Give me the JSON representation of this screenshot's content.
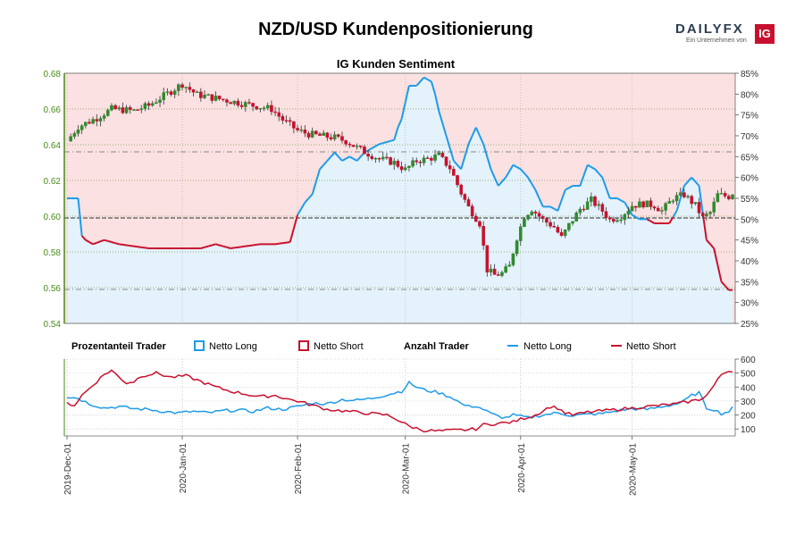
{
  "header": {
    "title": "NZD/USD Kundenpositionierung",
    "subtitle": "IG Kunden Sentiment"
  },
  "logo": {
    "brand_left": "DAILY",
    "brand_right": "FX",
    "tagline": "Ein Unternehmen von",
    "badge": "IG"
  },
  "colors": {
    "long": "#1e9be8",
    "short": "#c8102e",
    "long_fill": "#e4f2fb",
    "short_fill": "#fbe1e1",
    "bull_candle": "#2e8b2e",
    "bear_candle": "#c8102e",
    "left_axis": "#4a8a1a"
  },
  "legend": {
    "pct_header": "Prozentanteil Trader",
    "count_header": "Anzahl Trader",
    "long_label": "Netto Long",
    "short_label": "Netto Short"
  },
  "chart_data": [
    {
      "type": "line",
      "subtype": "candlestick with sentiment area",
      "title": "IG Kunden Sentiment",
      "y_left_range": [
        0.54,
        0.68
      ],
      "y_left_ticks": [
        "0.54",
        "0.56",
        "0.58",
        "0.60",
        "0.62",
        "0.64",
        "0.66",
        "0.68"
      ],
      "y_right_range": [
        25,
        85
      ],
      "y_right_ticks": [
        "25%",
        "30%",
        "35%",
        "40%",
        "45%",
        "50%",
        "55%",
        "60%",
        "65%",
        "70%",
        "75%",
        "80%",
        "85%"
      ],
      "x_ticks": [
        "2019-Dec-01",
        "2020-Jan-01",
        "2020-Feb-01",
        "2020-Mar-01",
        "2020-Apr-01",
        "2020-May-01"
      ],
      "x_tick_index": [
        0,
        31,
        62,
        91,
        122,
        152
      ],
      "n_days": 180,
      "price_close_keypoints": [
        [
          0,
          0.642
        ],
        [
          3,
          0.65
        ],
        [
          8,
          0.655
        ],
        [
          12,
          0.66
        ],
        [
          18,
          0.659
        ],
        [
          22,
          0.662
        ],
        [
          28,
          0.67
        ],
        [
          31,
          0.674
        ],
        [
          35,
          0.668
        ],
        [
          40,
          0.666
        ],
        [
          45,
          0.664
        ],
        [
          50,
          0.662
        ],
        [
          55,
          0.66
        ],
        [
          58,
          0.654
        ],
        [
          62,
          0.648
        ],
        [
          65,
          0.646
        ],
        [
          68,
          0.645
        ],
        [
          72,
          0.644
        ],
        [
          75,
          0.642
        ],
        [
          80,
          0.636
        ],
        [
          84,
          0.632
        ],
        [
          88,
          0.63
        ],
        [
          91,
          0.626
        ],
        [
          94,
          0.631
        ],
        [
          97,
          0.632
        ],
        [
          100,
          0.634
        ],
        [
          103,
          0.627
        ],
        [
          106,
          0.613
        ],
        [
          108,
          0.605
        ],
        [
          111,
          0.596
        ],
        [
          113,
          0.57
        ],
        [
          115,
          0.567
        ],
        [
          117,
          0.568
        ],
        [
          119,
          0.572
        ],
        [
          121,
          0.588
        ],
        [
          123,
          0.6
        ],
        [
          125,
          0.604
        ],
        [
          128,
          0.598
        ],
        [
          131,
          0.594
        ],
        [
          133,
          0.588
        ],
        [
          135,
          0.595
        ],
        [
          138,
          0.604
        ],
        [
          141,
          0.609
        ],
        [
          144,
          0.603
        ],
        [
          146,
          0.598
        ],
        [
          149,
          0.6
        ],
        [
          152,
          0.606
        ],
        [
          155,
          0.607
        ],
        [
          158,
          0.606
        ],
        [
          160,
          0.603
        ],
        [
          163,
          0.61
        ],
        [
          166,
          0.612
        ],
        [
          169,
          0.606
        ],
        [
          171,
          0.599
        ],
        [
          173,
          0.602
        ],
        [
          175,
          0.612
        ],
        [
          178,
          0.611
        ],
        [
          179,
          0.613
        ]
      ],
      "long_pct_keypoints": [
        [
          0,
          55
        ],
        [
          3,
          55
        ],
        [
          4,
          46
        ],
        [
          5,
          45
        ],
        [
          7,
          44
        ],
        [
          10,
          45
        ],
        [
          14,
          44
        ],
        [
          18,
          43.5
        ],
        [
          22,
          43
        ],
        [
          28,
          43
        ],
        [
          32,
          43
        ],
        [
          36,
          43
        ],
        [
          40,
          44
        ],
        [
          44,
          43
        ],
        [
          48,
          43.5
        ],
        [
          52,
          44
        ],
        [
          56,
          44
        ],
        [
          60,
          44.5
        ],
        [
          62,
          51
        ],
        [
          64,
          54
        ],
        [
          66,
          56
        ],
        [
          68,
          62
        ],
        [
          70,
          64
        ],
        [
          72,
          66
        ],
        [
          74,
          64
        ],
        [
          76,
          65
        ],
        [
          78,
          64
        ],
        [
          80,
          66
        ],
        [
          82,
          67
        ],
        [
          84,
          68
        ],
        [
          86,
          68.5
        ],
        [
          88,
          69
        ],
        [
          89,
          72
        ],
        [
          90,
          74
        ],
        [
          91,
          78
        ],
        [
          92,
          82
        ],
        [
          94,
          82
        ],
        [
          96,
          84
        ],
        [
          98,
          83
        ],
        [
          99,
          80
        ],
        [
          100,
          76
        ],
        [
          102,
          70
        ],
        [
          104,
          64
        ],
        [
          106,
          62
        ],
        [
          108,
          68
        ],
        [
          110,
          72
        ],
        [
          112,
          68
        ],
        [
          114,
          62
        ],
        [
          116,
          58
        ],
        [
          118,
          60
        ],
        [
          120,
          63
        ],
        [
          122,
          62
        ],
        [
          124,
          60
        ],
        [
          126,
          57
        ],
        [
          128,
          53
        ],
        [
          130,
          53
        ],
        [
          132,
          52
        ],
        [
          134,
          57
        ],
        [
          136,
          58
        ],
        [
          138,
          58
        ],
        [
          140,
          63
        ],
        [
          142,
          62
        ],
        [
          144,
          60
        ],
        [
          146,
          55
        ],
        [
          148,
          55
        ],
        [
          150,
          54
        ],
        [
          152,
          51
        ],
        [
          154,
          50
        ],
        [
          156,
          50
        ],
        [
          158,
          49
        ],
        [
          160,
          49
        ],
        [
          162,
          49
        ],
        [
          164,
          52
        ],
        [
          166,
          58
        ],
        [
          168,
          60
        ],
        [
          170,
          58
        ],
        [
          172,
          45
        ],
        [
          174,
          43
        ],
        [
          176,
          35
        ],
        [
          178,
          33
        ],
        [
          179,
          33
        ]
      ],
      "price_line_levels": [
        0.636,
        0.599,
        0.559
      ]
    },
    {
      "type": "line",
      "title": "Anzahl Trader",
      "y_range": [
        50,
        600
      ],
      "y_ticks": [
        "100",
        "200",
        "300",
        "400",
        "500",
        "600"
      ],
      "series": [
        {
          "name": "Netto Long",
          "keypoints": [
            [
              0,
              330
            ],
            [
              3,
              320
            ],
            [
              6,
              280
            ],
            [
              10,
              250
            ],
            [
              14,
              260
            ],
            [
              18,
              245
            ],
            [
              22,
              240
            ],
            [
              26,
              225
            ],
            [
              30,
              215
            ],
            [
              34,
              225
            ],
            [
              38,
              215
            ],
            [
              42,
              230
            ],
            [
              46,
              235
            ],
            [
              50,
              225
            ],
            [
              54,
              250
            ],
            [
              58,
              240
            ],
            [
              62,
              260
            ],
            [
              66,
              285
            ],
            [
              70,
              280
            ],
            [
              74,
              310
            ],
            [
              78,
              305
            ],
            [
              82,
              320
            ],
            [
              86,
              345
            ],
            [
              90,
              370
            ],
            [
              92,
              430
            ],
            [
              94,
              400
            ],
            [
              96,
              380
            ],
            [
              100,
              360
            ],
            [
              104,
              320
            ],
            [
              106,
              280
            ],
            [
              108,
              260
            ],
            [
              110,
              265
            ],
            [
              112,
              240
            ],
            [
              114,
              210
            ],
            [
              116,
              190
            ],
            [
              118,
              180
            ],
            [
              120,
              200
            ],
            [
              122,
              190
            ],
            [
              124,
              180
            ],
            [
              128,
              200
            ],
            [
              132,
              215
            ],
            [
              136,
              195
            ],
            [
              140,
              205
            ],
            [
              144,
              210
            ],
            [
              148,
              230
            ],
            [
              152,
              245
            ],
            [
              156,
              240
            ],
            [
              160,
              260
            ],
            [
              164,
              280
            ],
            [
              166,
              300
            ],
            [
              168,
              340
            ],
            [
              170,
              360
            ],
            [
              172,
              250
            ],
            [
              174,
              240
            ],
            [
              176,
              210
            ],
            [
              178,
              225
            ],
            [
              179,
              250
            ]
          ]
        },
        {
          "name": "Netto Short",
          "keypoints": [
            [
              0,
              285
            ],
            [
              2,
              270
            ],
            [
              4,
              340
            ],
            [
              6,
              390
            ],
            [
              8,
              440
            ],
            [
              10,
              490
            ],
            [
              12,
              520
            ],
            [
              14,
              470
            ],
            [
              16,
              430
            ],
            [
              18,
              440
            ],
            [
              20,
              480
            ],
            [
              24,
              500
            ],
            [
              28,
              470
            ],
            [
              32,
              480
            ],
            [
              36,
              440
            ],
            [
              40,
              400
            ],
            [
              44,
              370
            ],
            [
              48,
              350
            ],
            [
              52,
              330
            ],
            [
              56,
              340
            ],
            [
              60,
              310
            ],
            [
              62,
              300
            ],
            [
              66,
              270
            ],
            [
              70,
              240
            ],
            [
              74,
              230
            ],
            [
              78,
              220
            ],
            [
              82,
              210
            ],
            [
              86,
              200
            ],
            [
              88,
              180
            ],
            [
              90,
              150
            ],
            [
              92,
              120
            ],
            [
              96,
              90
            ],
            [
              100,
              85
            ],
            [
              104,
              90
            ],
            [
              108,
              95
            ],
            [
              110,
              100
            ],
            [
              112,
              130
            ],
            [
              116,
              140
            ],
            [
              120,
              150
            ],
            [
              122,
              170
            ],
            [
              124,
              185
            ],
            [
              126,
              200
            ],
            [
              128,
              230
            ],
            [
              130,
              260
            ],
            [
              132,
              250
            ],
            [
              134,
              215
            ],
            [
              136,
              200
            ],
            [
              140,
              220
            ],
            [
              144,
              230
            ],
            [
              148,
              240
            ],
            [
              152,
              250
            ],
            [
              156,
              260
            ],
            [
              160,
              270
            ],
            [
              164,
              280
            ],
            [
              166,
              290
            ],
            [
              168,
              300
            ],
            [
              170,
              310
            ],
            [
              172,
              340
            ],
            [
              174,
              410
            ],
            [
              176,
              490
            ],
            [
              178,
              520
            ],
            [
              179,
              510
            ]
          ]
        }
      ]
    }
  ]
}
